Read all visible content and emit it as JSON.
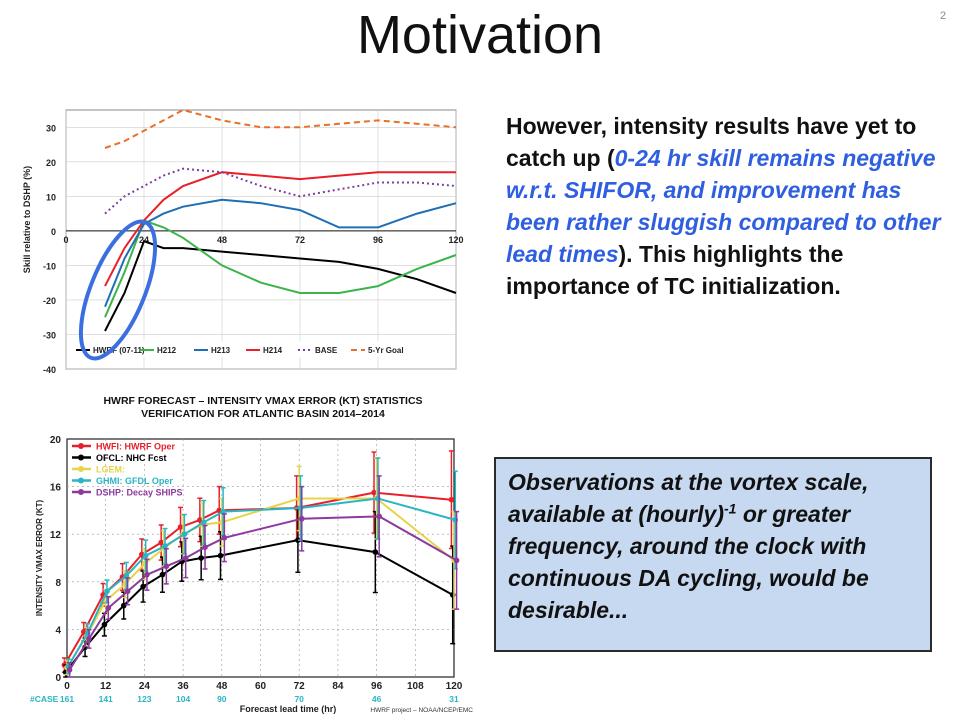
{
  "slide": {
    "title": "Motivation",
    "number": "2"
  },
  "text_block": {
    "part1": "However, intensity results have yet to catch up (",
    "highlight": "0-24 hr skill remains negative w.r.t. SHIFOR, and improvement has been rather sluggish compared to other lead times",
    "part2": "). This highlights the importance of TC initialization."
  },
  "callout": {
    "part1": "Observations at the vortex scale, available at (hourly)",
    "superscript": "-1",
    "part2": " or greater frequency, around the clock with continuous DA cycling, would be desirable..."
  },
  "colors": {
    "highlight_text": "#2f5fe0",
    "callout_bg": "#c6d9f0",
    "circle": "#3b6fe0"
  },
  "chart_data": [
    {
      "type": "line",
      "ylabel": "Skill relative to DSHP (%)",
      "xlim": [
        0,
        120
      ],
      "ylim": [
        -40,
        35
      ],
      "x_ticks": [
        0,
        24,
        48,
        72,
        96,
        120
      ],
      "y_ticks": [
        30,
        20,
        10,
        0,
        -10,
        -20,
        -30,
        -40
      ],
      "legend_position": "bottom",
      "series": [
        {
          "name": "HWRF (07-11)",
          "color": "#000000",
          "dash": "",
          "x": [
            12,
            18,
            24,
            30,
            36,
            48,
            60,
            72,
            84,
            96,
            108,
            120
          ],
          "y": [
            -29,
            -18,
            -3,
            -5,
            -5,
            -6,
            -7,
            -8,
            -9,
            -11,
            -14,
            -18
          ]
        },
        {
          "name": "H212",
          "color": "#3cb44b",
          "dash": "",
          "x": [
            12,
            18,
            24,
            30,
            36,
            48,
            60,
            72,
            84,
            96,
            108,
            120
          ],
          "y": [
            -25,
            -12,
            3,
            1,
            -2,
            -10,
            -15,
            -18,
            -18,
            -16,
            -11,
            -7
          ]
        },
        {
          "name": "H213",
          "color": "#1f6fb5",
          "dash": "",
          "x": [
            12,
            18,
            24,
            30,
            36,
            48,
            60,
            72,
            84,
            96,
            108,
            120
          ],
          "y": [
            -22,
            -8,
            2,
            5,
            7,
            9,
            8,
            6,
            1,
            1,
            5,
            8
          ]
        },
        {
          "name": "H214",
          "color": "#e8202a",
          "dash": "",
          "x": [
            12,
            18,
            24,
            30,
            36,
            48,
            60,
            72,
            84,
            96,
            108,
            120
          ],
          "y": [
            -16,
            -5,
            3,
            9,
            13,
            17,
            16,
            15,
            16,
            17,
            17,
            17
          ]
        },
        {
          "name": "BASE",
          "color": "#7a3f9d",
          "dash": "2,3",
          "x": [
            12,
            18,
            24,
            30,
            36,
            48,
            60,
            72,
            84,
            96,
            108,
            120
          ],
          "y": [
            5,
            10,
            13,
            16,
            18,
            17,
            13,
            10,
            12,
            14,
            14,
            13
          ]
        },
        {
          "name": "5-Yr Goal",
          "color": "#e8702a",
          "dash": "6,4",
          "x": [
            12,
            18,
            24,
            30,
            36,
            48,
            60,
            72,
            84,
            96,
            108,
            120
          ],
          "y": [
            24,
            26,
            29,
            32,
            35,
            32,
            30,
            30,
            31,
            32,
            31,
            30
          ]
        }
      ]
    },
    {
      "type": "line",
      "title": "HWRF FORECAST – INTENSITY VMAX ERROR (KT) STATISTICS",
      "subtitle": "VERIFICATION FOR ATLANTIC BASIN 2014–2014",
      "xlabel": "Forecast lead time (hr)",
      "ylabel": "INTENSITY VMAX ERROR (KT)",
      "xlim": [
        0,
        120
      ],
      "ylim": [
        0,
        20
      ],
      "x_ticks": [
        0,
        12,
        24,
        36,
        48,
        60,
        72,
        84,
        96,
        108,
        120
      ],
      "y_ticks": [
        0,
        4,
        8,
        12,
        16,
        20
      ],
      "legend_position": "top-left",
      "series": [
        {
          "name": "HWFI: HWRF Oper",
          "color": "#e8202a",
          "x": [
            0,
            6,
            12,
            18,
            24,
            30,
            36,
            42,
            48,
            72,
            96,
            120
          ],
          "y": [
            1,
            3.8,
            6.9,
            8.4,
            10.3,
            11.3,
            12.6,
            13.2,
            14,
            14.2,
            15.5,
            14.9
          ]
        },
        {
          "name": "OFCL: NHC Fcst",
          "color": "#000000",
          "x": [
            0,
            6,
            12,
            18,
            24,
            30,
            36,
            42,
            48,
            72,
            96,
            120
          ],
          "y": [
            0.4,
            2.5,
            4.4,
            6,
            7.6,
            8.6,
            9.7,
            10,
            10.2,
            11.5,
            10.5,
            6.9
          ]
        },
        {
          "name": "LGEM:",
          "color": "#e6d44a",
          "x": [
            0,
            6,
            12,
            18,
            24,
            30,
            36,
            42,
            48,
            72,
            96,
            120
          ],
          "y": [
            0.8,
            3.4,
            6.4,
            7.8,
            9.5,
            10.8,
            12,
            12.8,
            13,
            15,
            15,
            9.8
          ]
        },
        {
          "name": "GHMI: GFDL Oper",
          "color": "#2ab5c4",
          "x": [
            0,
            6,
            12,
            18,
            24,
            30,
            36,
            42,
            48,
            72,
            96,
            120
          ],
          "y": [
            0.9,
            3.7,
            7.2,
            8.5,
            10.2,
            11,
            12,
            13,
            13.9,
            14.2,
            15,
            13.2
          ]
        },
        {
          "name": "DSHP: Decay SHIPS",
          "color": "#8c3a9e",
          "x": [
            0,
            6,
            12,
            18,
            24,
            30,
            36,
            42,
            48,
            72,
            96,
            120
          ],
          "y": [
            0.6,
            3.2,
            5.8,
            7.2,
            8.6,
            9.3,
            10,
            10.9,
            11.7,
            13.3,
            13.5,
            9.8
          ]
        }
      ],
      "cases_label": "#CASE",
      "case_counts": {
        "x": [
          0,
          12,
          24,
          36,
          48,
          72,
          96,
          120
        ],
        "values": [
          "161",
          "141",
          "123",
          "104",
          "90",
          "70",
          "46",
          "31"
        ]
      },
      "footer": "HWRF project – NOAA/NCEP/EMC"
    }
  ]
}
